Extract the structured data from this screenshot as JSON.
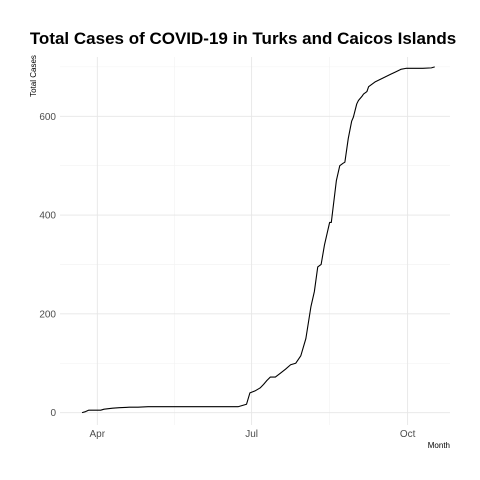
{
  "chart_data": {
    "type": "line",
    "title": "Total Cases of COVID-19 in Turks and Caicos Islands",
    "xlabel": "Month",
    "ylabel": "Total Cases",
    "x_ticks": [
      {
        "label": "Apr",
        "date": "2020-04-01"
      },
      {
        "label": "Jul",
        "date": "2020-07-01"
      },
      {
        "label": "Oct",
        "date": "2020-10-01"
      }
    ],
    "y_ticks": [
      0,
      200,
      400,
      600
    ],
    "ylim": [
      -25,
      720
    ],
    "xlim": [
      "2020-03-10",
      "2020-10-26"
    ],
    "grid": true,
    "series": [
      {
        "x": [
          "2020-03-23",
          "2020-03-25",
          "2020-03-27",
          "2020-04-03",
          "2020-04-05",
          "2020-04-10",
          "2020-04-14",
          "2020-04-20",
          "2020-04-25",
          "2020-05-01",
          "2020-05-15",
          "2020-06-01",
          "2020-06-15",
          "2020-06-23",
          "2020-06-25",
          "2020-06-27",
          "2020-06-28",
          "2020-06-30",
          "2020-07-03",
          "2020-07-06",
          "2020-07-08",
          "2020-07-10",
          "2020-07-12",
          "2020-07-15",
          "2020-07-18",
          "2020-07-21",
          "2020-07-24",
          "2020-07-27",
          "2020-07-30",
          "2020-08-02",
          "2020-08-05",
          "2020-08-07",
          "2020-08-09",
          "2020-08-11",
          "2020-08-13",
          "2020-08-16",
          "2020-08-17",
          "2020-08-20",
          "2020-08-22",
          "2020-08-24",
          "2020-08-25",
          "2020-08-27",
          "2020-08-29",
          "2020-08-30",
          "2020-09-01",
          "2020-09-02",
          "2020-09-04",
          "2020-09-05",
          "2020-09-07",
          "2020-09-08",
          "2020-09-10",
          "2020-09-12",
          "2020-09-15",
          "2020-09-18",
          "2020-09-21",
          "2020-09-24",
          "2020-09-27",
          "2020-09-30",
          "2020-10-02",
          "2020-10-05",
          "2020-10-10",
          "2020-10-15",
          "2020-10-17"
        ],
        "y": [
          0,
          2,
          5,
          5,
          7,
          9,
          10,
          11,
          11,
          12,
          12,
          12,
          12,
          12,
          14,
          16,
          17,
          40,
          44,
          50,
          57,
          65,
          72,
          72,
          80,
          88,
          97,
          100,
          115,
          150,
          215,
          245,
          295,
          300,
          340,
          385,
          385,
          470,
          500,
          505,
          507,
          555,
          590,
          598,
          625,
          632,
          640,
          645,
          650,
          660,
          665,
          670,
          675,
          680,
          685,
          690,
          695,
          697,
          697,
          697,
          697,
          698,
          700
        ]
      }
    ]
  }
}
